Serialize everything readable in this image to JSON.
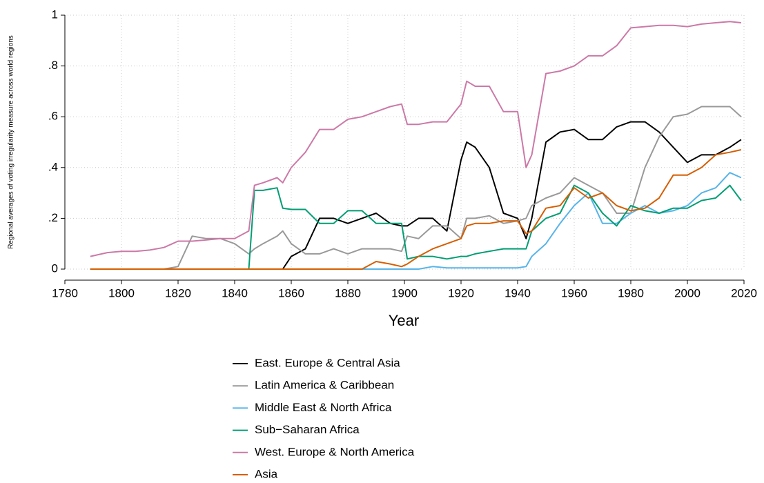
{
  "chart_data": {
    "type": "line",
    "xlabel": "Year",
    "ylabel": "Regional averages of voting irregularity measure across world regions",
    "x": [
      1789,
      1795,
      1800,
      1805,
      1810,
      1815,
      1820,
      1825,
      1830,
      1835,
      1840,
      1845,
      1847,
      1850,
      1855,
      1857,
      1860,
      1865,
      1870,
      1875,
      1880,
      1885,
      1890,
      1895,
      1899,
      1901,
      1905,
      1910,
      1915,
      1920,
      1922,
      1925,
      1930,
      1935,
      1940,
      1943,
      1945,
      1950,
      1955,
      1960,
      1965,
      1970,
      1975,
      1980,
      1985,
      1990,
      1995,
      2000,
      2005,
      2010,
      2015,
      2019
    ],
    "series": [
      {
        "name": "East. Europe & Central Asia",
        "color": "#000000",
        "values": [
          0,
          0,
          0,
          0,
          0,
          0,
          0,
          0,
          0,
          0,
          0,
          0,
          0,
          0,
          0,
          0,
          0.05,
          0.08,
          0.2,
          0.2,
          0.18,
          0.2,
          0.22,
          0.18,
          0.17,
          0.17,
          0.2,
          0.2,
          0.15,
          0.43,
          0.5,
          0.48,
          0.4,
          0.22,
          0.2,
          0.12,
          0.2,
          0.5,
          0.54,
          0.55,
          0.51,
          0.51,
          0.56,
          0.58,
          0.58,
          0.54,
          0.48,
          0.42,
          0.45,
          0.45,
          0.48,
          0.51
        ]
      },
      {
        "name": "Latin America & Caribbean",
        "color": "#999999",
        "values": [
          0,
          0,
          0,
          0,
          0,
          0,
          0.01,
          0.13,
          0.12,
          0.12,
          0.1,
          0.06,
          0.08,
          0.1,
          0.13,
          0.15,
          0.1,
          0.06,
          0.06,
          0.08,
          0.06,
          0.08,
          0.08,
          0.08,
          0.07,
          0.13,
          0.12,
          0.17,
          0.17,
          0.12,
          0.2,
          0.2,
          0.21,
          0.18,
          0.19,
          0.2,
          0.25,
          0.28,
          0.3,
          0.36,
          0.33,
          0.3,
          0.22,
          0.22,
          0.4,
          0.52,
          0.6,
          0.61,
          0.64,
          0.64,
          0.64,
          0.6
        ]
      },
      {
        "name": "Middle East & North Africa",
        "color": "#56b4e9",
        "values": [
          0,
          0,
          0,
          0,
          0,
          0,
          0,
          0,
          0,
          0,
          0,
          0,
          0,
          0,
          0,
          0,
          0,
          0,
          0,
          0,
          0,
          0,
          0,
          0,
          0,
          0,
          0,
          0.01,
          0.005,
          0.005,
          0.005,
          0.005,
          0.005,
          0.005,
          0.005,
          0.01,
          0.05,
          0.1,
          0.18,
          0.25,
          0.3,
          0.18,
          0.18,
          0.22,
          0.25,
          0.22,
          0.23,
          0.25,
          0.3,
          0.32,
          0.38,
          0.36
        ]
      },
      {
        "name": "Sub−Saharan Africa",
        "color": "#009e73",
        "values": [
          0,
          0,
          0,
          0,
          0,
          0,
          0,
          0,
          0,
          0,
          0,
          0,
          0.31,
          0.31,
          0.32,
          0.24,
          0.235,
          0.235,
          0.18,
          0.18,
          0.23,
          0.23,
          0.18,
          0.18,
          0.18,
          0.04,
          0.05,
          0.05,
          0.04,
          0.05,
          0.05,
          0.06,
          0.07,
          0.08,
          0.08,
          0.08,
          0.15,
          0.2,
          0.22,
          0.33,
          0.3,
          0.22,
          0.17,
          0.25,
          0.23,
          0.22,
          0.24,
          0.24,
          0.27,
          0.28,
          0.33,
          0.27
        ]
      },
      {
        "name": "West. Europe & North America",
        "color": "#cc79a7",
        "values": [
          0.05,
          0.065,
          0.07,
          0.07,
          0.075,
          0.085,
          0.11,
          0.11,
          0.115,
          0.12,
          0.12,
          0.15,
          0.33,
          0.34,
          0.36,
          0.34,
          0.4,
          0.46,
          0.55,
          0.55,
          0.59,
          0.6,
          0.62,
          0.64,
          0.65,
          0.57,
          0.57,
          0.58,
          0.58,
          0.65,
          0.74,
          0.72,
          0.72,
          0.62,
          0.62,
          0.4,
          0.45,
          0.77,
          0.78,
          0.8,
          0.84,
          0.84,
          0.88,
          0.95,
          0.955,
          0.96,
          0.96,
          0.955,
          0.965,
          0.97,
          0.975,
          0.97
        ]
      },
      {
        "name": "Asia",
        "color": "#d55e00",
        "values": [
          0,
          0,
          0,
          0,
          0,
          0,
          0,
          0,
          0,
          0,
          0,
          0,
          0,
          0,
          0,
          0,
          0,
          0,
          0,
          0,
          0,
          0,
          0.03,
          0.02,
          0.01,
          0.02,
          0.05,
          0.08,
          0.1,
          0.12,
          0.17,
          0.18,
          0.18,
          0.19,
          0.19,
          0.14,
          0.15,
          0.24,
          0.25,
          0.32,
          0.28,
          0.3,
          0.25,
          0.23,
          0.24,
          0.28,
          0.37,
          0.37,
          0.4,
          0.45,
          0.46,
          0.47
        ]
      }
    ],
    "xlim": [
      1780,
      2020
    ],
    "xticks": [
      1780,
      1800,
      1820,
      1840,
      1860,
      1880,
      1900,
      1920,
      1940,
      1960,
      1980,
      2000,
      2020
    ],
    "ylim": [
      0,
      1
    ],
    "yticks": [
      0,
      {
        "value": 0.2,
        "label": ".2"
      },
      {
        "value": 0.4,
        "label": ".4"
      },
      {
        "value": 0.6,
        "label": ".6"
      },
      {
        "value": 0.8,
        "label": ".8"
      },
      1
    ],
    "grid": true,
    "legend": "bottom"
  }
}
